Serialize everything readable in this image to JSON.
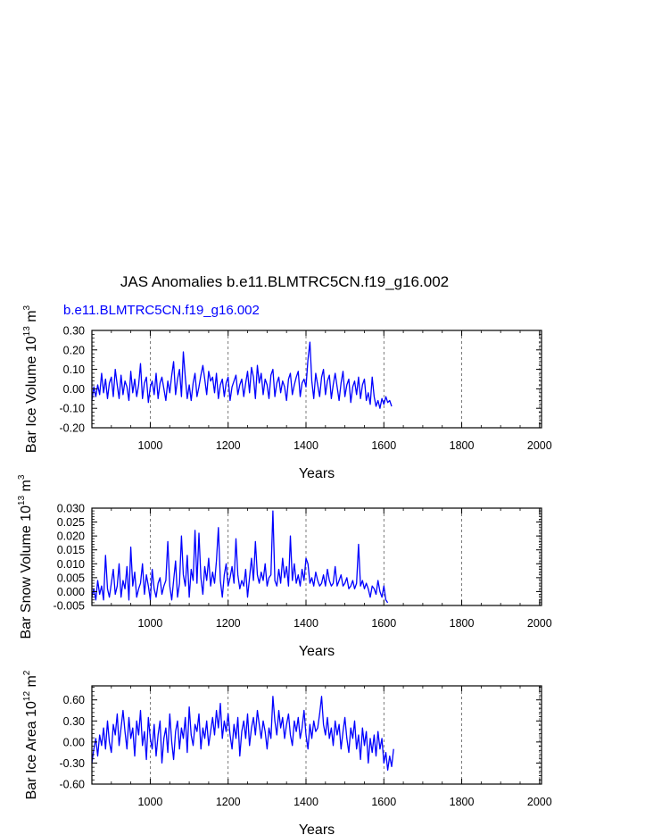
{
  "figure": {
    "title": "JAS Anomalies b.e11.BLMTRC5CN.f19_g16.002",
    "subtitle": "b.e11.BLMTRC5CN.f19_g16.002"
  },
  "chart_data": [
    {
      "type": "line",
      "ylabel": {
        "main": "Bar Ice Volume 10",
        "exp": "13",
        "unit": " m",
        "unit_exp": "3"
      },
      "xlabel": "Years",
      "xlim": [
        850,
        2005
      ],
      "ylim": [
        -0.2,
        0.3
      ],
      "xticks": [
        1000,
        1200,
        1400,
        1600,
        1800,
        2000
      ],
      "xtick_labels": [
        "1000",
        "1200",
        "1400",
        "1600",
        "1800",
        "2000"
      ],
      "yticks": [
        -0.2,
        -0.1,
        0.0,
        0.1,
        0.2,
        0.3
      ],
      "ytick_labels": [
        "-0.20",
        "-0.10",
        "0.00",
        "0.10",
        "0.20",
        "0.30"
      ],
      "color": "#0000ff",
      "series": [
        {
          "x_start": 850,
          "x_step": 5,
          "values": [
            -0.06,
            0.01,
            -0.04,
            0.02,
            -0.03,
            0.08,
            -0.02,
            0.05,
            -0.05,
            0.03,
            0.06,
            -0.04,
            0.1,
            0.02,
            -0.05,
            0.07,
            -0.03,
            0.04,
            0.01,
            -0.06,
            0.09,
            -0.02,
            0.05,
            -0.04,
            0.02,
            0.13,
            -0.05,
            0.03,
            0.06,
            -0.07,
            0.01,
            0.04,
            -0.03,
            0.08,
            -0.05,
            0.03,
            0.06,
            0.0,
            -0.06,
            0.04,
            -0.02,
            0.07,
            0.14,
            -0.03,
            0.05,
            0.1,
            -0.04,
            0.19,
            0.06,
            -0.05,
            0.02,
            -0.06,
            0.03,
            0.08,
            -0.04,
            0.01,
            0.07,
            0.12,
            0.05,
            -0.03,
            0.09,
            0.04,
            0.06,
            -0.02,
            0.08,
            -0.05,
            0.02,
            0.05,
            -0.04,
            0.03,
            0.06,
            -0.06,
            0.01,
            0.04,
            0.07,
            -0.03,
            0.02,
            0.05,
            -0.04,
            0.03,
            0.09,
            -0.02,
            0.11,
            0.06,
            -0.05,
            0.12,
            0.03,
            0.08,
            -0.03,
            0.05,
            0.02,
            -0.05,
            0.07,
            0.1,
            -0.04,
            0.03,
            0.06,
            -0.02,
            0.04,
            0.01,
            -0.06,
            0.05,
            0.08,
            -0.03,
            0.02,
            0.06,
            0.09,
            -0.04,
            0.03,
            0.05,
            0.01,
            0.15,
            0.24,
            0.04,
            -0.05,
            0.08,
            0.02,
            -0.04,
            0.06,
            0.1,
            -0.03,
            0.04,
            0.07,
            -0.05,
            0.02,
            0.08,
            0.01,
            -0.06,
            0.03,
            0.09,
            -0.04,
            0.02,
            0.05,
            -0.07,
            0.01,
            0.04,
            -0.03,
            0.06,
            -0.05,
            0.02,
            0.05,
            -0.06,
            -0.02,
            -0.08,
            0.06,
            -0.04,
            -0.09,
            -0.06,
            -0.1,
            -0.05,
            -0.08,
            -0.04,
            -0.07,
            -0.06,
            -0.09
          ]
        }
      ]
    },
    {
      "type": "line",
      "ylabel": {
        "main": "Bar Snow Volume 10",
        "exp": "13",
        "unit": " m",
        "unit_exp": "3"
      },
      "xlabel": "Years",
      "xlim": [
        850,
        2005
      ],
      "ylim": [
        -0.005,
        0.03
      ],
      "xticks": [
        1000,
        1200,
        1400,
        1600,
        1800,
        2000
      ],
      "xtick_labels": [
        "1000",
        "1200",
        "1400",
        "1600",
        "1800",
        "2000"
      ],
      "yticks": [
        -0.005,
        0.0,
        0.005,
        0.01,
        0.015,
        0.02,
        0.025,
        0.03
      ],
      "ytick_labels": [
        "-0.005",
        "0.000",
        "0.005",
        "0.010",
        "0.015",
        "0.020",
        "0.025",
        "0.030"
      ],
      "color": "#0000ff",
      "series": [
        {
          "x_start": 850,
          "x_step": 5,
          "values": [
            -0.002,
            0.001,
            -0.003,
            0.004,
            -0.001,
            0.002,
            -0.003,
            0.013,
            0.001,
            -0.002,
            0.003,
            0.008,
            -0.001,
            0.002,
            0.01,
            -0.002,
            0.004,
            0.001,
            0.009,
            -0.003,
            0.016,
            0.002,
            0.007,
            -0.002,
            0.001,
            0.003,
            0.01,
            -0.001,
            0.006,
            0.002,
            -0.003,
            0.008,
            0.001,
            -0.002,
            0.003,
            0.005,
            -0.001,
            0.002,
            0.004,
            0.018,
            0.002,
            -0.003,
            0.004,
            0.011,
            -0.002,
            0.003,
            0.02,
            0.006,
            0.002,
            0.013,
            -0.002,
            0.008,
            0.004,
            0.022,
            0.003,
            0.021,
            0.005,
            -0.001,
            0.009,
            0.004,
            0.012,
            0.002,
            0.007,
            0.003,
            0.011,
            0.023,
            0.004,
            -0.002,
            0.006,
            0.01,
            0.002,
            0.005,
            0.009,
            0.003,
            0.019,
            0.006,
            0.001,
            0.004,
            0.002,
            0.008,
            -0.002,
            0.005,
            0.012,
            0.004,
            0.018,
            0.006,
            0.003,
            0.007,
            0.004,
            0.01,
            0.002,
            0.005,
            0.006,
            0.029,
            0.004,
            0.002,
            0.008,
            0.003,
            0.012,
            0.005,
            0.009,
            0.002,
            0.02,
            0.004,
            0.01,
            0.003,
            0.006,
            0.002,
            0.008,
            0.004,
            0.012,
            0.01,
            0.003,
            0.005,
            0.002,
            0.007,
            0.004,
            0.002,
            0.003,
            0.006,
            0.002,
            0.008,
            0.004,
            0.002,
            0.003,
            0.009,
            0.002,
            0.004,
            0.006,
            0.002,
            0.003,
            0.005,
            0.001,
            0.002,
            0.004,
            0.001,
            0.003,
            0.017,
            0.002,
            0.004,
            0.001,
            0.003,
            0.001,
            -0.002,
            0.002,
            0.001,
            -0.001,
            0.004,
            0.0,
            -0.002,
            0.002,
            -0.003,
            -0.004
          ]
        }
      ]
    },
    {
      "type": "line",
      "ylabel": {
        "main": "Bar Ice Area 10",
        "exp": "12",
        "unit": " m",
        "unit_exp": "2"
      },
      "xlabel": "Years",
      "xlim": [
        850,
        2005
      ],
      "ylim": [
        -0.6,
        0.8
      ],
      "xticks": [
        1000,
        1200,
        1400,
        1600,
        1800,
        2000
      ],
      "xtick_labels": [
        "1000",
        "1200",
        "1400",
        "1600",
        "1800",
        "2000"
      ],
      "yticks": [
        -0.6,
        -0.3,
        0.0,
        0.3,
        0.6
      ],
      "ytick_labels": [
        "-0.60",
        "-0.30",
        "0.00",
        "0.30",
        "0.60"
      ],
      "color": "#0000ff",
      "series": [
        {
          "x_start": 850,
          "x_step": 5,
          "values": [
            -0.3,
            -0.1,
            0.05,
            -0.2,
            0.1,
            -0.05,
            0.2,
            -0.1,
            0.3,
            0.0,
            -0.15,
            0.25,
            0.1,
            0.4,
            -0.05,
            0.2,
            0.45,
            0.15,
            -0.1,
            0.35,
            0.05,
            0.2,
            -0.2,
            0.3,
            0.1,
            0.45,
            -0.05,
            0.15,
            -0.25,
            0.35,
            0.05,
            -0.1,
            0.25,
            -0.2,
            0.1,
            0.3,
            -0.3,
            0.05,
            0.2,
            -0.15,
            0.4,
            0.0,
            -0.25,
            0.15,
            0.3,
            -0.1,
            0.2,
            0.05,
            0.35,
            -0.15,
            0.5,
            0.1,
            -0.05,
            0.25,
            0.15,
            0.4,
            -0.1,
            0.2,
            0.05,
            0.3,
            -0.05,
            0.15,
            0.35,
            0.1,
            0.45,
            0.2,
            0.55,
            0.05,
            0.3,
            0.15,
            0.4,
            0.1,
            -0.1,
            0.25,
            0.05,
            0.35,
            -0.2,
            0.15,
            0.3,
            0.05,
            0.4,
            -0.05,
            0.2,
            0.35,
            0.1,
            0.45,
            0.25,
            0.05,
            0.3,
            0.15,
            -0.1,
            0.2,
            0.05,
            0.65,
            0.3,
            0.1,
            0.45,
            0.2,
            0.35,
            0.05,
            0.25,
            0.4,
            0.1,
            -0.05,
            0.3,
            0.15,
            0.35,
            0.05,
            0.2,
            0.45,
            0.1,
            -0.1,
            0.25,
            0.05,
            0.3,
            0.15,
            0.2,
            0.4,
            0.65,
            0.25,
            0.1,
            0.35,
            0.05,
            0.2,
            -0.05,
            0.3,
            0.1,
            0.25,
            -0.1,
            0.15,
            0.35,
            0.05,
            -0.15,
            0.2,
            0.05,
            0.3,
            -0.1,
            0.1,
            -0.25,
            0.2,
            -0.05,
            0.15,
            -0.3,
            0.05,
            -0.15,
            0.1,
            -0.2,
            0.15,
            -0.1,
            0.05,
            -0.3,
            -0.15,
            -0.4,
            -0.2,
            -0.35,
            -0.1
          ]
        }
      ]
    }
  ]
}
